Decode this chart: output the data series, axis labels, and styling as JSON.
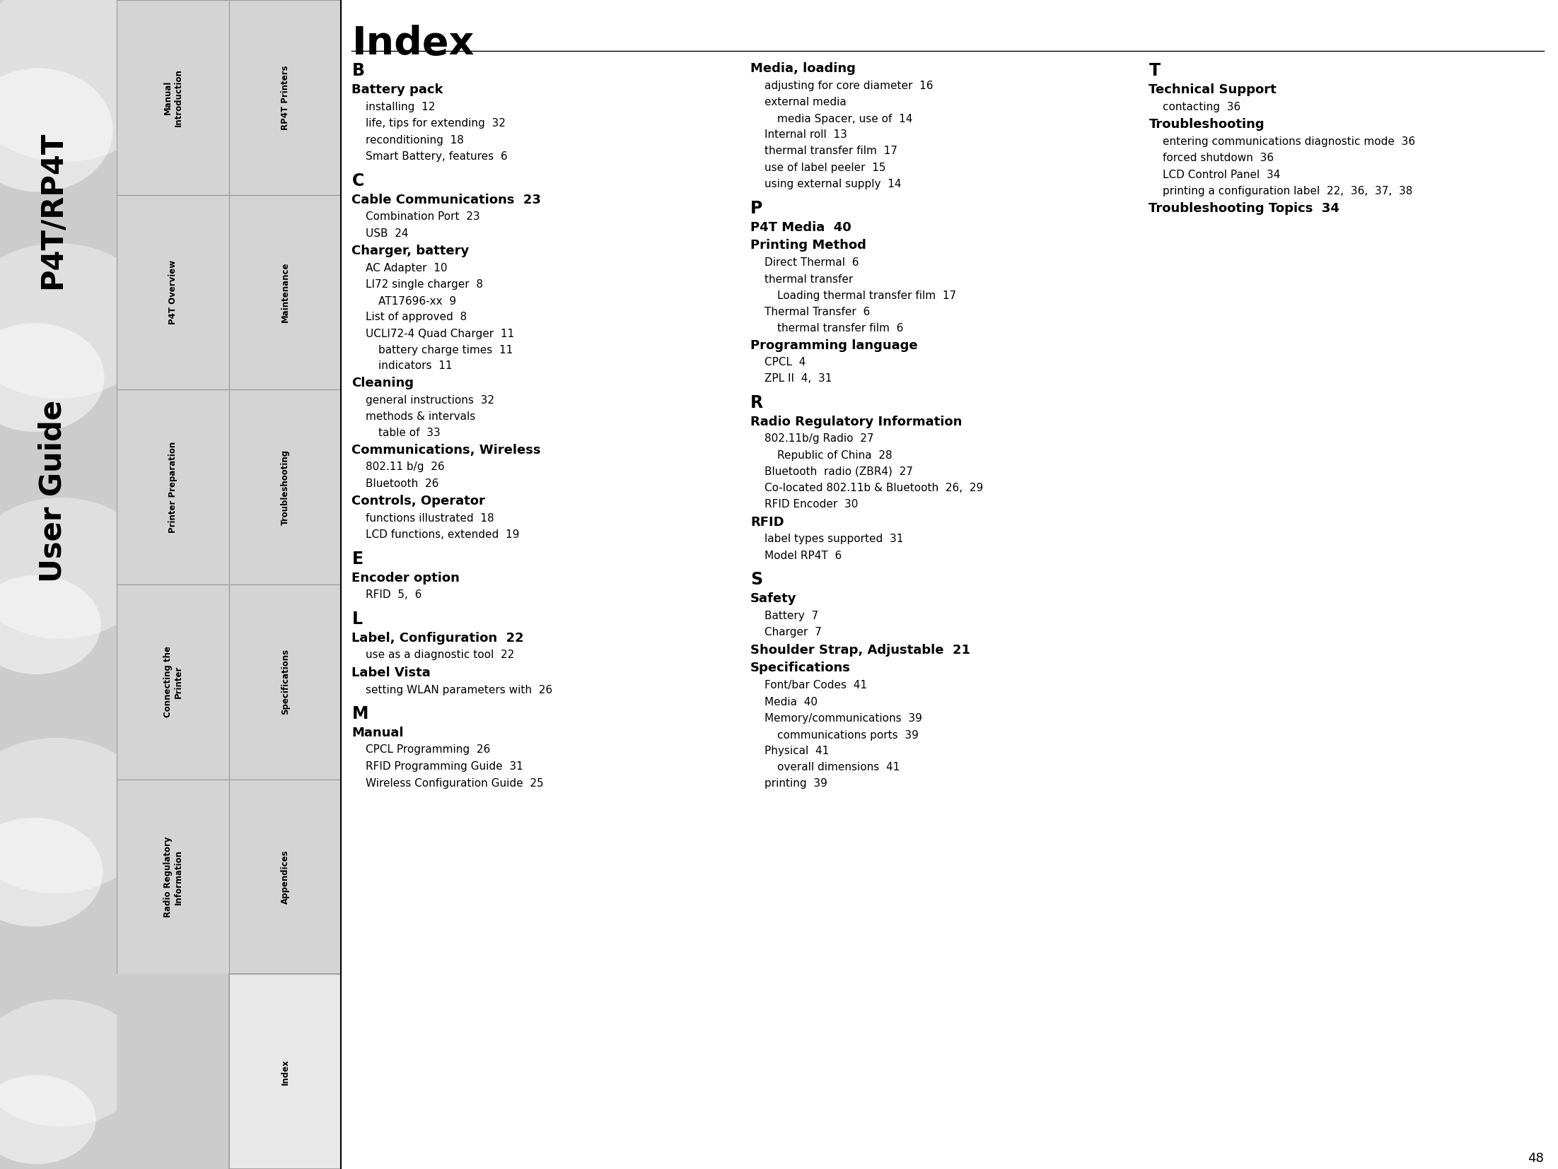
{
  "page_number": "48",
  "title": "Index",
  "bg_color": "#ffffff",
  "sidebar_wave_bg": "#c8c8c8",
  "nav_cell_bg": "#d0d0d0",
  "nav_cell_border": "#999999",
  "index_highlight_bg": "#e8e8e8",
  "cover_line1": "P4T/RP4T",
  "cover_line2": "User Guide",
  "nav_items_left": [
    "Manual\nIntroduction",
    "P4T Overview",
    "Printer Preparation",
    "Connecting the\nPrinter",
    "Radio Regulatory\nInformation"
  ],
  "nav_items_right": [
    "RP4T Printers",
    "Maintenance",
    "Troubleshooting",
    "Specifications",
    "Appendices"
  ],
  "nav_index_label": "Index",
  "col1_sections": [
    {
      "header": "B",
      "entries": [
        {
          "text": "Battery pack",
          "level": 0
        },
        {
          "text": "installing  12",
          "level": 1
        },
        {
          "text": "life, tips for extending  32",
          "level": 1
        },
        {
          "text": "reconditioning  18",
          "level": 1
        },
        {
          "text": "Smart Battery, features  6",
          "level": 1
        }
      ]
    },
    {
      "header": "C",
      "entries": [
        {
          "text": "Cable Communications  23",
          "level": 0
        },
        {
          "text": "Combination Port  23",
          "level": 1
        },
        {
          "text": "USB  24",
          "level": 1
        },
        {
          "text": "Charger, battery",
          "level": 0
        },
        {
          "text": "AC Adapter  10",
          "level": 1
        },
        {
          "text": "LI72 single charger  8",
          "level": 1
        },
        {
          "text": "AT17696-xx  9",
          "level": 2
        },
        {
          "text": "List of approved  8",
          "level": 1
        },
        {
          "text": "UCLI72-4 Quad Charger  11",
          "level": 1
        },
        {
          "text": "battery charge times  11",
          "level": 2
        },
        {
          "text": "indicators  11",
          "level": 2
        },
        {
          "text": "Cleaning",
          "level": 0
        },
        {
          "text": "general instructions  32",
          "level": 1
        },
        {
          "text": "methods & intervals",
          "level": 1
        },
        {
          "text": "table of  33",
          "level": 2
        },
        {
          "text": "Communications, Wireless",
          "level": 0
        },
        {
          "text": "802.11 b/g  26",
          "level": 1
        },
        {
          "text": "Bluetooth  26",
          "level": 1
        },
        {
          "text": "Controls, Operator",
          "level": 0
        },
        {
          "text": "functions illustrated  18",
          "level": 1
        },
        {
          "text": "LCD functions, extended  19",
          "level": 1
        }
      ]
    },
    {
      "header": "E",
      "entries": [
        {
          "text": "Encoder option",
          "level": 0
        },
        {
          "text": "RFID  5,  6",
          "level": 1
        }
      ]
    },
    {
      "header": "L",
      "entries": [
        {
          "text": "Label, Configuration  22",
          "level": 0
        },
        {
          "text": "use as a diagnostic tool  22",
          "level": 1
        },
        {
          "text": "Label Vista",
          "level": 0
        },
        {
          "text": "setting WLAN parameters with  26",
          "level": 1
        }
      ]
    },
    {
      "header": "M",
      "entries": [
        {
          "text": "Manual",
          "level": 0
        },
        {
          "text": "CPCL Programming  26",
          "level": 1
        },
        {
          "text": "RFID Programming Guide  31",
          "level": 1
        },
        {
          "text": "Wireless Configuration Guide  25",
          "level": 1
        }
      ]
    }
  ],
  "col2_sections": [
    {
      "header": null,
      "entries": [
        {
          "text": "Media, loading",
          "level": 0
        },
        {
          "text": "adjusting for core diameter  16",
          "level": 1
        },
        {
          "text": "external media",
          "level": 1
        },
        {
          "text": "media Spacer, use of  14",
          "level": 2
        },
        {
          "text": "Internal roll  13",
          "level": 1
        },
        {
          "text": "thermal transfer film  17",
          "level": 1
        },
        {
          "text": "use of label peeler  15",
          "level": 1
        },
        {
          "text": "using external supply  14",
          "level": 1
        }
      ]
    },
    {
      "header": "P",
      "entries": [
        {
          "text": "P4T Media  40",
          "level": 0
        },
        {
          "text": "Printing Method",
          "level": 0
        },
        {
          "text": "Direct Thermal  6",
          "level": 1
        },
        {
          "text": "thermal transfer",
          "level": 1
        },
        {
          "text": "Loading thermal transfer film  17",
          "level": 2
        },
        {
          "text": "Thermal Transfer  6",
          "level": 1
        },
        {
          "text": "thermal transfer film  6",
          "level": 2
        },
        {
          "text": "Programming language",
          "level": 0
        },
        {
          "text": "CPCL  4",
          "level": 1
        },
        {
          "text": "ZPL II  4,  31",
          "level": 1
        }
      ]
    },
    {
      "header": "R",
      "entries": [
        {
          "text": "Radio Regulatory Information",
          "level": 0
        },
        {
          "text": "802.11b/g Radio  27",
          "level": 1
        },
        {
          "text": "Republic of China  28",
          "level": 2
        },
        {
          "text": "Bluetooth  radio (ZBR4)  27",
          "level": 1
        },
        {
          "text": "Co-located 802.11b & Bluetooth  26,  29",
          "level": 1
        },
        {
          "text": "RFID Encoder  30",
          "level": 1
        },
        {
          "text": "RFID",
          "level": 0
        },
        {
          "text": "label types supported  31",
          "level": 1
        },
        {
          "text": "Model RP4T  6",
          "level": 1
        }
      ]
    },
    {
      "header": "S",
      "entries": [
        {
          "text": "Safety",
          "level": 0
        },
        {
          "text": "Battery  7",
          "level": 1
        },
        {
          "text": "Charger  7",
          "level": 1
        },
        {
          "text": "Shoulder Strap, Adjustable  21",
          "level": 0
        },
        {
          "text": "Specifications",
          "level": 0
        },
        {
          "text": "Font/bar Codes  41",
          "level": 1
        },
        {
          "text": "Media  40",
          "level": 1
        },
        {
          "text": "Memory/communications  39",
          "level": 1
        },
        {
          "text": "communications ports  39",
          "level": 2
        },
        {
          "text": "Physical  41",
          "level": 1
        },
        {
          "text": "overall dimensions  41",
          "level": 2
        },
        {
          "text": "printing  39",
          "level": 1
        }
      ]
    }
  ],
  "col3_sections": [
    {
      "header": "T",
      "entries": [
        {
          "text": "Technical Support",
          "level": 0
        },
        {
          "text": "contacting  36",
          "level": 1
        },
        {
          "text": "Troubleshooting",
          "level": 0
        },
        {
          "text": "entering communications diagnostic mode  36",
          "level": 1
        },
        {
          "text": "forced shutdown  36",
          "level": 1
        },
        {
          "text": "LCD Control Panel  34",
          "level": 1
        },
        {
          "text": "printing a configuration label  22,  36,  37,  38",
          "level": 1
        },
        {
          "text": "Troubleshooting Topics  34",
          "level": 0
        }
      ]
    }
  ]
}
